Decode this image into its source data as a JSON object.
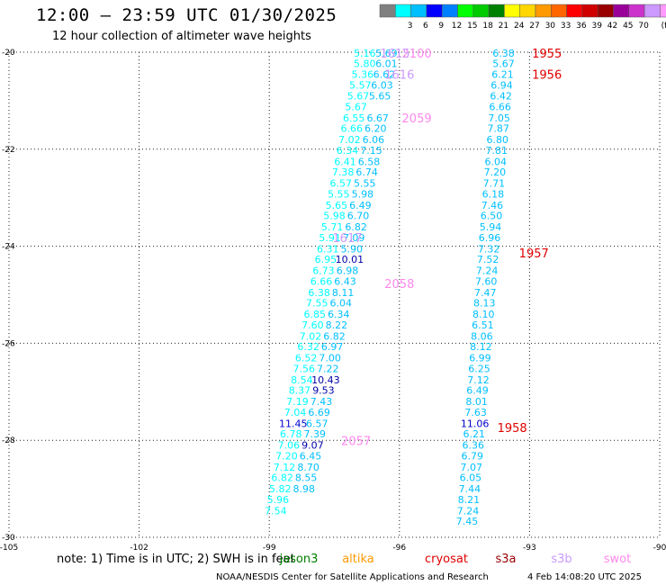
{
  "header": {
    "title": "12:00 — 23:59 UTC 01/30/2025",
    "subtitle": "12 hour collection of altimeter wave heights"
  },
  "scale": {
    "colors": [
      "#808080",
      "#00ffff",
      "#00bfff",
      "#0000ff",
      "#0080ff",
      "#00ff00",
      "#00cc00",
      "#008000",
      "#ffff00",
      "#ffd700",
      "#ff9900",
      "#ff6600",
      "#ff0000",
      "#d00000",
      "#990000",
      "#990099",
      "#cc33cc",
      "#cc99ff",
      "#ff99ff",
      "#000000"
    ],
    "labels": [
      "3",
      "6",
      "9",
      "12",
      "15",
      "18",
      "21",
      "24",
      "27",
      "30",
      "33",
      "36",
      "39",
      "42",
      "45",
      "70"
    ],
    "unit": "(ft)"
  },
  "chart_data": {
    "type": "scatter",
    "xlim": [
      -105,
      -90
    ],
    "ylim": [
      -30,
      -20
    ],
    "x_ticks": [
      -105,
      -102,
      -99,
      -96,
      -93,
      -90
    ],
    "y_ticks": [
      -30,
      -28,
      -26,
      -24,
      -22,
      -20
    ],
    "x_tick_labels": [
      "-105",
      "-102",
      "-99",
      "-96",
      "-93",
      "-90"
    ],
    "y_tick_labels": [
      "-30",
      "-28",
      "-26",
      "-24",
      "-22",
      "-20"
    ],
    "grid": true,
    "tracks": [
      {
        "name": "left",
        "color": "#00ffff",
        "points": [
          {
            "x": -96.8,
            "y": -20.02,
            "v": "5.16"
          },
          {
            "x": -96.8,
            "y": -20.23,
            "v": "5.80"
          },
          {
            "x": -96.85,
            "y": -20.45,
            "v": "5.36"
          },
          {
            "x": -96.9,
            "y": -20.68,
            "v": "5.57"
          },
          {
            "x": -96.95,
            "y": -20.9,
            "v": "5.67"
          },
          {
            "x": -97.0,
            "y": -21.12,
            "v": "5.67"
          },
          {
            "x": -97.05,
            "y": -21.35,
            "v": "6.55"
          },
          {
            "x": -97.1,
            "y": -21.57,
            "v": "6.66"
          },
          {
            "x": -97.15,
            "y": -21.8,
            "v": "7.02"
          },
          {
            "x": -97.2,
            "y": -22.02,
            "v": "6.34"
          },
          {
            "x": -97.25,
            "y": -22.25,
            "v": "6.41"
          },
          {
            "x": -97.3,
            "y": -22.47,
            "v": "7.38"
          },
          {
            "x": -97.35,
            "y": -22.7,
            "v": "6.57"
          },
          {
            "x": -97.4,
            "y": -22.92,
            "v": "5.55"
          },
          {
            "x": -97.45,
            "y": -23.15,
            "v": "5.65"
          },
          {
            "x": -97.5,
            "y": -23.37,
            "v": "5.98"
          },
          {
            "x": -97.55,
            "y": -23.6,
            "v": "5.71"
          },
          {
            "x": -97.6,
            "y": -23.82,
            "v": "5.91"
          },
          {
            "x": -97.65,
            "y": -24.05,
            "v": "6.31"
          },
          {
            "x": -97.7,
            "y": -24.27,
            "v": "6.95"
          },
          {
            "x": -97.75,
            "y": -24.5,
            "v": "6.73"
          },
          {
            "x": -97.8,
            "y": -24.72,
            "v": "6.66"
          },
          {
            "x": -97.85,
            "y": -24.95,
            "v": "6.38"
          },
          {
            "x": -97.9,
            "y": -25.17,
            "v": "7.55"
          },
          {
            "x": -97.95,
            "y": -25.4,
            "v": "6.85"
          },
          {
            "x": -98.0,
            "y": -25.62,
            "v": "7.60"
          },
          {
            "x": -98.05,
            "y": -25.85,
            "v": "7.02"
          },
          {
            "x": -98.1,
            "y": -26.07,
            "v": "6.32"
          },
          {
            "x": -98.15,
            "y": -26.3,
            "v": "6.52"
          },
          {
            "x": -98.2,
            "y": -26.52,
            "v": "7.56"
          },
          {
            "x": -98.25,
            "y": -26.75,
            "v": "8.54"
          },
          {
            "x": -98.3,
            "y": -26.97,
            "v": "8.37"
          },
          {
            "x": -98.35,
            "y": -27.2,
            "v": "7.19"
          },
          {
            "x": -98.4,
            "y": -27.42,
            "v": "7.04"
          },
          {
            "x": -98.45,
            "y": -27.65,
            "v": "11.45"
          },
          {
            "x": -98.5,
            "y": -27.87,
            "v": "6.78"
          },
          {
            "x": -98.55,
            "y": -28.1,
            "v": "7.06"
          },
          {
            "x": -98.6,
            "y": -28.32,
            "v": "7.20"
          },
          {
            "x": -98.65,
            "y": -28.55,
            "v": "7.12"
          },
          {
            "x": -98.7,
            "y": -28.77,
            "v": "6.82"
          },
          {
            "x": -98.75,
            "y": -29.0,
            "v": "5.82"
          },
          {
            "x": -98.8,
            "y": -29.22,
            "v": "5.96"
          },
          {
            "x": -98.85,
            "y": -29.45,
            "v": "7.54"
          }
        ]
      },
      {
        "name": "middle",
        "color": "#00bfff",
        "points": [
          {
            "x": -96.3,
            "y": -20.02,
            "v": "5.69"
          },
          {
            "x": -96.3,
            "y": -20.23,
            "v": "6.01"
          },
          {
            "x": -96.35,
            "y": -20.45,
            "v": "6.62"
          },
          {
            "x": -96.4,
            "y": -20.68,
            "v": "6.03"
          },
          {
            "x": -96.45,
            "y": -20.9,
            "v": "5.65"
          },
          {
            "x": -96.5,
            "y": -21.35,
            "v": "6.67"
          },
          {
            "x": -96.55,
            "y": -21.57,
            "v": "6.20"
          },
          {
            "x": -96.6,
            "y": -21.8,
            "v": "6.06"
          },
          {
            "x": -96.65,
            "y": -22.02,
            "v": "7.15"
          },
          {
            "x": -96.7,
            "y": -22.25,
            "v": "6.58"
          },
          {
            "x": -96.75,
            "y": -22.47,
            "v": "6.74"
          },
          {
            "x": -96.8,
            "y": -22.7,
            "v": "5.55"
          },
          {
            "x": -96.85,
            "y": -22.92,
            "v": "5.98"
          },
          {
            "x": -96.9,
            "y": -23.15,
            "v": "6.49"
          },
          {
            "x": -96.95,
            "y": -23.37,
            "v": "6.70"
          },
          {
            "x": -97.0,
            "y": -23.6,
            "v": "6.82"
          },
          {
            "x": -97.05,
            "y": -23.82,
            "v": "7.09"
          },
          {
            "x": -97.1,
            "y": -24.05,
            "v": "5.90"
          },
          {
            "x": -97.15,
            "y": -24.27,
            "v": "10.01"
          },
          {
            "x": -97.2,
            "y": -24.5,
            "v": "6.98"
          },
          {
            "x": -97.25,
            "y": -24.72,
            "v": "6.43"
          },
          {
            "x": -97.3,
            "y": -24.95,
            "v": "8.11"
          },
          {
            "x": -97.35,
            "y": -25.17,
            "v": "6.04"
          },
          {
            "x": -97.4,
            "y": -25.4,
            "v": "6.34"
          },
          {
            "x": -97.45,
            "y": -25.62,
            "v": "8.22"
          },
          {
            "x": -97.5,
            "y": -25.85,
            "v": "6.82"
          },
          {
            "x": -97.55,
            "y": -26.07,
            "v": "6.97"
          },
          {
            "x": -97.6,
            "y": -26.3,
            "v": "7.00"
          },
          {
            "x": -97.65,
            "y": -26.52,
            "v": "7.22"
          },
          {
            "x": -97.7,
            "y": -26.75,
            "v": "10.43"
          },
          {
            "x": -97.75,
            "y": -26.97,
            "v": "9.53"
          },
          {
            "x": -97.8,
            "y": -27.2,
            "v": "7.43"
          },
          {
            "x": -97.85,
            "y": -27.42,
            "v": "6.69"
          },
          {
            "x": -97.9,
            "y": -27.65,
            "v": "6.57"
          },
          {
            "x": -97.95,
            "y": -27.87,
            "v": "7.39"
          },
          {
            "x": -98.0,
            "y": -28.1,
            "v": "9.07"
          },
          {
            "x": -98.05,
            "y": -28.32,
            "v": "6.45"
          },
          {
            "x": -98.1,
            "y": -28.55,
            "v": "8.70"
          },
          {
            "x": -98.15,
            "y": -28.77,
            "v": "8.55"
          },
          {
            "x": -98.2,
            "y": -29.0,
            "v": "8.98"
          }
        ]
      },
      {
        "name": "right",
        "color": "#00bfff",
        "points": [
          {
            "x": -93.6,
            "y": -20.02,
            "v": "6.38"
          },
          {
            "x": -93.6,
            "y": -20.23,
            "v": "5.67"
          },
          {
            "x": -93.62,
            "y": -20.45,
            "v": "6.21"
          },
          {
            "x": -93.64,
            "y": -20.68,
            "v": "6.94"
          },
          {
            "x": -93.66,
            "y": -20.9,
            "v": "6.42"
          },
          {
            "x": -93.68,
            "y": -21.12,
            "v": "6.66"
          },
          {
            "x": -93.7,
            "y": -21.35,
            "v": "7.05"
          },
          {
            "x": -93.72,
            "y": -21.57,
            "v": "7.87"
          },
          {
            "x": -93.74,
            "y": -21.8,
            "v": "6.80"
          },
          {
            "x": -93.76,
            "y": -22.02,
            "v": "7.81"
          },
          {
            "x": -93.78,
            "y": -22.25,
            "v": "6.04"
          },
          {
            "x": -93.8,
            "y": -22.47,
            "v": "7.20"
          },
          {
            "x": -93.82,
            "y": -22.7,
            "v": "7.71"
          },
          {
            "x": -93.84,
            "y": -22.92,
            "v": "6.18"
          },
          {
            "x": -93.86,
            "y": -23.15,
            "v": "7.46"
          },
          {
            "x": -93.88,
            "y": -23.37,
            "v": "6.50"
          },
          {
            "x": -93.9,
            "y": -23.6,
            "v": "5.94"
          },
          {
            "x": -93.92,
            "y": -23.82,
            "v": "6.96"
          },
          {
            "x": -93.94,
            "y": -24.05,
            "v": "7.32"
          },
          {
            "x": -93.96,
            "y": -24.27,
            "v": "7.52"
          },
          {
            "x": -93.98,
            "y": -24.5,
            "v": "7.24"
          },
          {
            "x": -94.0,
            "y": -24.72,
            "v": "7.60"
          },
          {
            "x": -94.02,
            "y": -24.95,
            "v": "7.47"
          },
          {
            "x": -94.04,
            "y": -25.17,
            "v": "8.13"
          },
          {
            "x": -94.06,
            "y": -25.4,
            "v": "8.10"
          },
          {
            "x": -94.08,
            "y": -25.62,
            "v": "6.51"
          },
          {
            "x": -94.1,
            "y": -25.85,
            "v": "8.06"
          },
          {
            "x": -94.12,
            "y": -26.07,
            "v": "8.12"
          },
          {
            "x": -94.14,
            "y": -26.3,
            "v": "6.99"
          },
          {
            "x": -94.16,
            "y": -26.52,
            "v": "6.25"
          },
          {
            "x": -94.18,
            "y": -26.75,
            "v": "7.12"
          },
          {
            "x": -94.2,
            "y": -26.97,
            "v": "6.49"
          },
          {
            "x": -94.22,
            "y": -27.2,
            "v": "8.01"
          },
          {
            "x": -94.24,
            "y": -27.42,
            "v": "7.63"
          },
          {
            "x": -94.26,
            "y": -27.65,
            "v": "11.06"
          },
          {
            "x": -94.28,
            "y": -27.87,
            "v": "6.21"
          },
          {
            "x": -94.3,
            "y": -28.1,
            "v": "6.36"
          },
          {
            "x": -94.32,
            "y": -28.32,
            "v": "6.79"
          },
          {
            "x": -94.34,
            "y": -28.55,
            "v": "7.07"
          },
          {
            "x": -94.36,
            "y": -28.77,
            "v": "6.05"
          },
          {
            "x": -94.38,
            "y": -29.0,
            "v": "7.44"
          },
          {
            "x": -94.4,
            "y": -29.22,
            "v": "8.21"
          },
          {
            "x": -94.42,
            "y": -29.45,
            "v": "7.24"
          },
          {
            "x": -94.44,
            "y": -29.67,
            "v": "7.45"
          }
        ]
      }
    ],
    "time_labels": [
      {
        "text": "1955",
        "x": -92.6,
        "y": -20.02,
        "color": "#e00000"
      },
      {
        "text": "1956",
        "x": -92.6,
        "y": -20.45,
        "color": "#e00000"
      },
      {
        "text": "1957",
        "x": -92.9,
        "y": -24.14,
        "color": "#e00000"
      },
      {
        "text": "1958",
        "x": -93.4,
        "y": -27.74,
        "color": "#e00000"
      },
      {
        "text": "2100",
        "x": -95.6,
        "y": -20.02,
        "color": "#ff88ee"
      },
      {
        "text": "2059",
        "x": -95.6,
        "y": -21.35,
        "color": "#ff88ee"
      },
      {
        "text": "2058",
        "x": -96.0,
        "y": -24.77,
        "color": "#ff88ee"
      },
      {
        "text": "2057",
        "x": -97.0,
        "y": -28.01,
        "color": "#ff88ee"
      },
      {
        "text": "1615",
        "x": -96.1,
        "y": -20.02,
        "color": "#cc99ff"
      },
      {
        "text": "1616",
        "x": -96.0,
        "y": -20.45,
        "color": "#cc99ff"
      },
      {
        "text": "1617",
        "x": -97.2,
        "y": -23.82,
        "color": "#cc99ff"
      }
    ]
  },
  "footer": {
    "note": "note: 1) Time is in UTC; 2) SWH is in feet",
    "satellites": [
      {
        "label": "jason3",
        "color": "#008000"
      },
      {
        "label": "altika",
        "color": "#ff9900"
      },
      {
        "label": "cryosat",
        "color": "#e00000"
      },
      {
        "label": "s3a",
        "color": "#990000"
      },
      {
        "label": "s3b",
        "color": "#cc99ff"
      },
      {
        "label": "swot",
        "color": "#ff88ee"
      }
    ],
    "credit": "NOAA/NESDIS Center for Satellite Applications and Research",
    "timestamp": "4 Feb 14:08:20 UTC 2025"
  }
}
